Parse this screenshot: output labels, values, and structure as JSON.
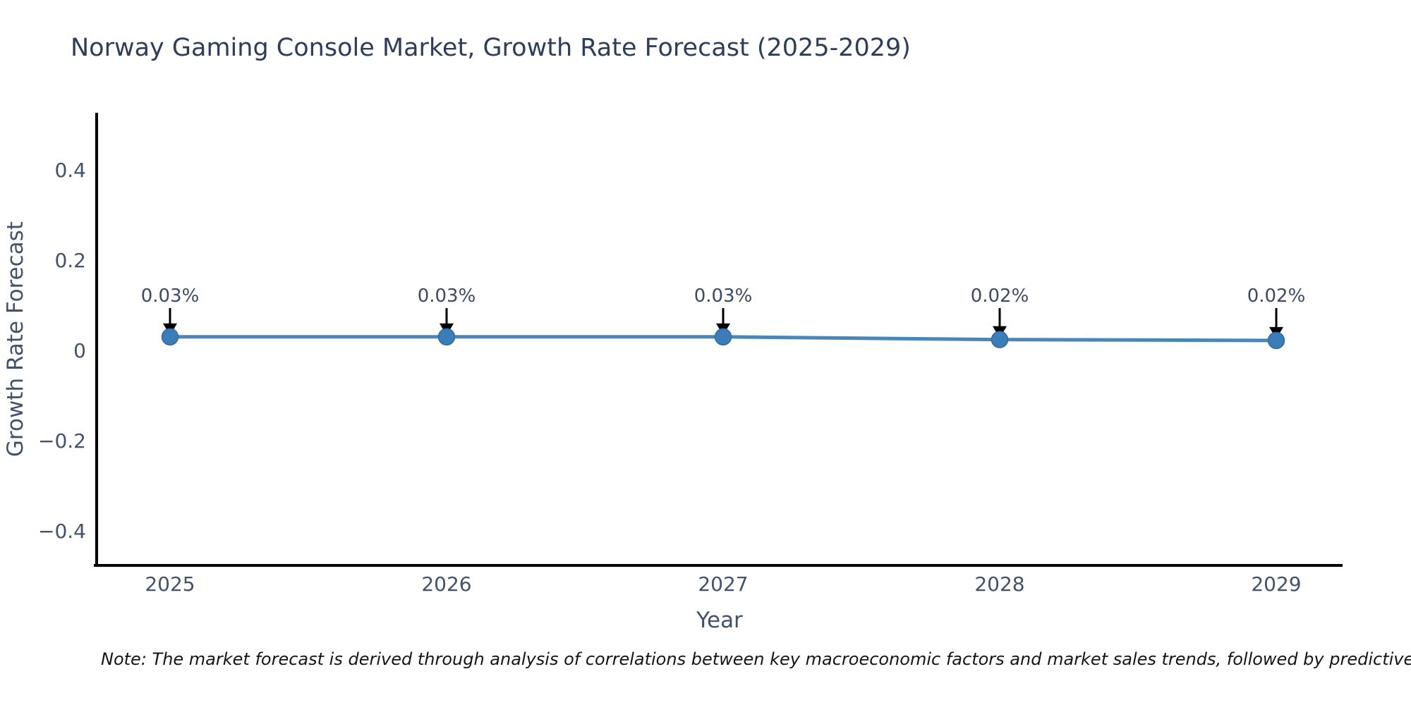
{
  "title": "Norway Gaming Console Market, Growth Rate Forecast (2025-2029)",
  "footnote": "Note: The market forecast is derived through analysis of correlations between key macroeconomic factors and market sales trends, followed by predictive modeling to project future sales.",
  "colors": {
    "title": "#2e3d59",
    "tick_label": "#42526b",
    "axis_label": "#42526b",
    "annotation_text": "#3c4a63",
    "line": "#4a86b8",
    "marker": "#3c7cb8",
    "marker_edge": "#2f6ba3",
    "axis_line": "#000000",
    "arrow": "#000000",
    "background": "#ffffff"
  },
  "chart_data": {
    "type": "line",
    "title": "Norway Gaming Console Market, Growth Rate Forecast (2025-2029)",
    "x": [
      2025,
      2026,
      2027,
      2028,
      2029
    ],
    "series": [
      {
        "name": "Growth Rate Forecast",
        "values": [
          0.03,
          0.03,
          0.03,
          0.024,
          0.022
        ]
      }
    ],
    "point_labels": [
      "0.03%",
      "0.03%",
      "0.03%",
      "0.02%",
      "0.02%"
    ],
    "xlabel": "Year",
    "ylabel": "Growth Rate Forecast",
    "xtick_labels": [
      "2025",
      "2026",
      "2027",
      "2028",
      "2029"
    ],
    "ytick_values": [
      0.4,
      0.2,
      0,
      -0.2,
      -0.4
    ],
    "ytick_labels": [
      "0.4",
      "0.2",
      "0",
      "−0.2",
      "−0.4"
    ],
    "ylim": [
      -0.48,
      0.53
    ],
    "grid": false,
    "legend": false,
    "marker_style": "circle",
    "annotations_have_arrows": true
  }
}
